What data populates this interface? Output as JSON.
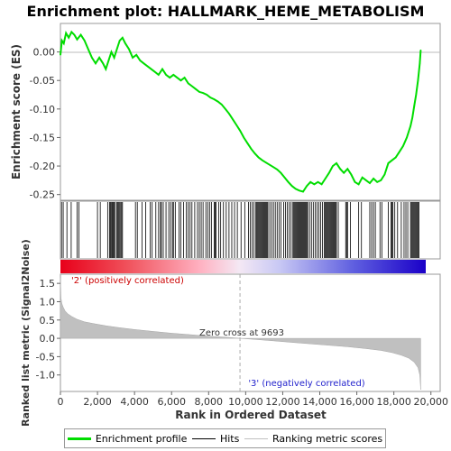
{
  "title": "Enrichment plot: HALLMARK_HEME_METABOLISM",
  "legend": {
    "items": [
      {
        "label": "Enrichment profile",
        "color": "#00dd00"
      },
      {
        "label": "Hits",
        "color": "#000000"
      },
      {
        "label": "Ranking metric scores",
        "color": "#c0c0c0"
      }
    ]
  },
  "chart_data": [
    {
      "type": "line",
      "title": "Enrichment plot: HALLMARK_HEME_METABOLISM",
      "ylabel": "Enrichment score (ES)",
      "xlim": [
        0,
        20500
      ],
      "ylim": [
        -0.26,
        0.05
      ],
      "yticks": [
        0.0,
        -0.05,
        -0.1,
        -0.15,
        -0.2,
        -0.25
      ],
      "ytick_labels": [
        "0.00",
        "-0.05",
        "-0.10",
        "-0.15",
        "-0.20",
        "-0.25"
      ],
      "grid": false,
      "series": [
        {
          "name": "Enrichment profile",
          "color": "#00dd00",
          "x": [
            0,
            80,
            180,
            300,
            450,
            600,
            750,
            900,
            1100,
            1300,
            1500,
            1700,
            1900,
            2100,
            2300,
            2450,
            2600,
            2750,
            2900,
            3050,
            3200,
            3350,
            3500,
            3700,
            3900,
            4100,
            4300,
            4500,
            4700,
            4900,
            5100,
            5300,
            5500,
            5700,
            5900,
            6100,
            6300,
            6500,
            6700,
            6900,
            7100,
            7300,
            7500,
            7700,
            7900,
            8100,
            8300,
            8500,
            8700,
            8900,
            9100,
            9300,
            9500,
            9700,
            9900,
            10100,
            10300,
            10500,
            10700,
            10900,
            11100,
            11300,
            11500,
            11700,
            11900,
            12100,
            12300,
            12500,
            12700,
            12900,
            13100,
            13300,
            13500,
            13700,
            13900,
            14100,
            14300,
            14500,
            14700,
            14900,
            15100,
            15300,
            15500,
            15700,
            15900,
            16100,
            16300,
            16500,
            16700,
            16900,
            17100,
            17300,
            17500,
            17700,
            17900,
            18100,
            18300,
            18500,
            18700,
            18900,
            19000,
            19100,
            19200,
            19300,
            19400,
            19450
          ],
          "y": [
            -0.005,
            0.02,
            0.015,
            0.033,
            0.025,
            0.035,
            0.03,
            0.022,
            0.03,
            0.02,
            0.005,
            -0.01,
            -0.02,
            -0.01,
            -0.02,
            -0.03,
            -0.015,
            0.0,
            -0.01,
            0.005,
            0.02,
            0.025,
            0.015,
            0.005,
            -0.01,
            -0.005,
            -0.015,
            -0.02,
            -0.025,
            -0.03,
            -0.035,
            -0.04,
            -0.03,
            -0.04,
            -0.045,
            -0.04,
            -0.045,
            -0.05,
            -0.045,
            -0.055,
            -0.06,
            -0.065,
            -0.07,
            -0.072,
            -0.075,
            -0.08,
            -0.083,
            -0.087,
            -0.092,
            -0.1,
            -0.108,
            -0.118,
            -0.128,
            -0.138,
            -0.15,
            -0.16,
            -0.17,
            -0.178,
            -0.185,
            -0.19,
            -0.194,
            -0.198,
            -0.202,
            -0.206,
            -0.212,
            -0.22,
            -0.228,
            -0.235,
            -0.24,
            -0.243,
            -0.245,
            -0.235,
            -0.228,
            -0.232,
            -0.228,
            -0.232,
            -0.222,
            -0.212,
            -0.2,
            -0.195,
            -0.205,
            -0.212,
            -0.205,
            -0.215,
            -0.228,
            -0.232,
            -0.22,
            -0.225,
            -0.23,
            -0.222,
            -0.228,
            -0.225,
            -0.215,
            -0.195,
            -0.19,
            -0.185,
            -0.175,
            -0.165,
            -0.15,
            -0.13,
            -0.115,
            -0.095,
            -0.075,
            -0.05,
            -0.02,
            0.003
          ]
        }
      ]
    },
    {
      "type": "scatter",
      "title": "",
      "ylabel": "",
      "series": [
        {
          "name": "Hits",
          "color": "#000000",
          "x": [
            60,
            150,
            350,
            580,
            900,
            1000,
            2000,
            2150,
            2550,
            2650,
            2700,
            2760,
            2800,
            2850,
            2900,
            2960,
            3050,
            3100,
            3150,
            3180,
            3250,
            3300,
            3350,
            4050,
            4150,
            4400,
            4600,
            4850,
            4950,
            5150,
            5300,
            5400,
            5450,
            5550,
            5700,
            5850,
            5950,
            6050,
            6100,
            6200,
            6400,
            6500,
            6650,
            6800,
            6900,
            7000,
            7100,
            7250,
            7400,
            7500,
            7600,
            7700,
            7850,
            7950,
            8050,
            8150,
            8300,
            8350,
            8400,
            8550,
            8650,
            8800,
            8950,
            9100,
            9250,
            9400,
            9550,
            9750,
            9950,
            10150,
            10250,
            10350,
            10450,
            10550,
            10600,
            10650,
            10700,
            10750,
            10800,
            10850,
            10900,
            10950,
            11000,
            11050,
            11100,
            11150,
            11200,
            11300,
            11400,
            11500,
            11600,
            11700,
            11800,
            11900,
            12050,
            12150,
            12250,
            12350,
            12450,
            12550,
            12600,
            12650,
            12700,
            12750,
            12800,
            12850,
            12900,
            12950,
            13000,
            13050,
            13100,
            13150,
            13200,
            13250,
            13300,
            13350,
            13450,
            13550,
            13650,
            13750,
            13850,
            13950,
            14050,
            14150,
            14250,
            14300,
            14350,
            14400,
            14450,
            14500,
            14550,
            14600,
            14650,
            14700,
            14750,
            14800,
            14850,
            14900,
            15000,
            15400,
            15450,
            15500,
            15650,
            16100,
            16250,
            16700,
            16800,
            16900,
            17000,
            17250,
            17350,
            17700,
            17850,
            17900,
            17950,
            18050,
            18200,
            18400,
            18550,
            18650,
            18750,
            18900,
            18950,
            19000,
            19050,
            19100,
            19150,
            19200,
            19250,
            19300,
            19350
          ],
          "y": [
            1,
            1,
            1,
            1,
            1,
            1,
            1,
            1,
            1,
            1,
            1,
            1,
            1,
            1,
            1,
            1,
            1,
            1,
            1,
            1,
            1,
            1,
            1,
            1,
            1,
            1,
            1,
            1,
            1,
            1,
            1,
            1,
            1,
            1,
            1,
            1,
            1,
            1,
            1,
            1,
            1,
            1,
            1,
            1,
            1,
            1,
            1,
            1,
            1,
            1,
            1,
            1,
            1,
            1,
            1,
            1,
            1,
            1,
            1,
            1,
            1,
            1,
            1,
            1,
            1,
            1,
            1,
            1,
            1,
            1,
            1,
            1,
            1,
            1,
            1,
            1,
            1,
            1,
            1,
            1,
            1,
            1,
            1,
            1,
            1,
            1,
            1,
            1,
            1,
            1,
            1,
            1,
            1,
            1,
            1,
            1,
            1,
            1,
            1,
            1,
            1,
            1,
            1,
            1,
            1,
            1,
            1,
            1,
            1,
            1,
            1,
            1,
            1,
            1,
            1,
            1,
            1,
            1,
            1,
            1,
            1,
            1,
            1,
            1,
            1,
            1,
            1,
            1,
            1,
            1,
            1,
            1,
            1,
            1,
            1,
            1,
            1,
            1,
            1,
            1,
            1,
            1,
            1,
            1,
            1,
            1,
            1,
            1,
            1,
            1,
            1,
            1,
            1,
            1,
            1,
            1,
            1,
            1,
            1,
            1,
            1,
            1,
            1,
            1,
            1,
            1,
            1,
            1,
            1,
            1,
            1
          ]
        }
      ]
    },
    {
      "type": "area",
      "title": "",
      "xlabel": "Rank in Ordered Dataset",
      "ylabel": "Ranked list metric (Signal2Noise)",
      "xlim": [
        0,
        20500
      ],
      "ylim": [
        -1.45,
        1.75
      ],
      "xticks": [
        0,
        2000,
        4000,
        6000,
        8000,
        10000,
        12000,
        14000,
        16000,
        18000,
        20000
      ],
      "xtick_labels": [
        "0",
        "2,000",
        "4,000",
        "6,000",
        "8,000",
        "10,000",
        "12,000",
        "14,000",
        "16,000",
        "18,000",
        "20,000"
      ],
      "yticks": [
        1.5,
        1.0,
        0.5,
        0.0,
        -0.5,
        -1.0
      ],
      "ytick_labels": [
        "1.5",
        "1.0",
        "0.5",
        "0.0",
        "-0.5",
        "-1.0"
      ],
      "grid": false,
      "series": [
        {
          "name": "Ranking metric scores",
          "color": "#c0c0c0",
          "x": [
            0,
            30,
            80,
            150,
            250,
            400,
            600,
            900,
            1300,
            1800,
            2500,
            3200,
            4000,
            5000,
            6000,
            7000,
            8000,
            9000,
            9693,
            10500,
            11500,
            12500,
            13500,
            14500,
            15500,
            16500,
            17300,
            17900,
            18400,
            18800,
            19100,
            19300,
            19400,
            19450
          ],
          "y": [
            1.65,
            1.1,
            0.95,
            0.85,
            0.75,
            0.67,
            0.6,
            0.52,
            0.45,
            0.4,
            0.34,
            0.29,
            0.24,
            0.19,
            0.14,
            0.1,
            0.06,
            0.03,
            0.0,
            -0.03,
            -0.07,
            -0.11,
            -0.15,
            -0.19,
            -0.23,
            -0.28,
            -0.33,
            -0.39,
            -0.46,
            -0.54,
            -0.65,
            -0.8,
            -1.0,
            -1.4
          ]
        }
      ],
      "annotations": [
        {
          "text": "Zero cross at 9693",
          "x": 9693
        },
        {
          "text": "'2' (positively correlated)"
        },
        {
          "text": "'3' (negatively correlated)"
        }
      ]
    }
  ]
}
